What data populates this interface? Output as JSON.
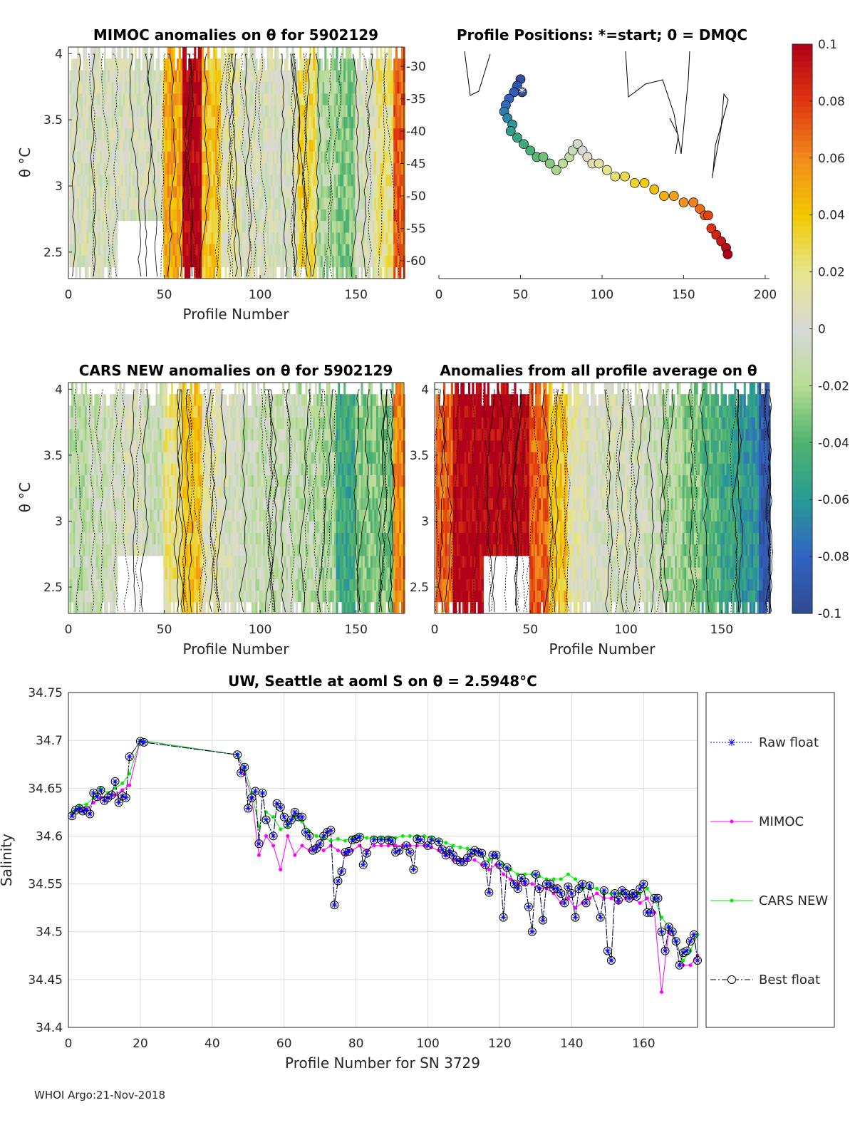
{
  "footer": "WHOI Argo:21-Nov-2018",
  "colorbar": {
    "ticks": [
      "0.1",
      "0.08",
      "0.06",
      "0.04",
      "0.02",
      "0",
      "-0.02",
      "-0.04",
      "-0.06",
      "-0.08",
      "-0.1"
    ],
    "range": [
      -0.1,
      0.1
    ],
    "stops": [
      "#2f4a8f",
      "#3163c4",
      "#2a9a95",
      "#4fb36e",
      "#b8dc94",
      "#d9d9d9",
      "#e6e68a",
      "#f2c800",
      "#f28a1e",
      "#e0350f",
      "#b0001a"
    ]
  },
  "chart_data": [
    {
      "type": "heatmap",
      "title": "MIMOC anomalies on θ  for 5902129",
      "xlabel": "Profile Number",
      "ylabel": "θ °C",
      "xlim": [
        0,
        175
      ],
      "ylim": [
        2.3,
        4.05
      ],
      "xticks": [
        "0",
        "50",
        "100",
        "150"
      ],
      "yticks": [
        "4",
        "3.5",
        "3",
        "2.5"
      ],
      "right_yticks": [
        "-30",
        "-35",
        "-40",
        "-45",
        "-50",
        "-55",
        "-60"
      ],
      "bin_width_profiles": 10,
      "column_mean_anomaly": [
        0,
        0,
        0,
        0,
        0,
        0.05,
        0.1,
        0.04,
        0.01,
        0,
        0,
        0,
        0.03,
        -0.02,
        -0.03,
        0,
        0.02,
        0.07
      ]
    },
    {
      "type": "scatter",
      "title": "Profile Positions: *=start; 0 = DMQC",
      "xlim": [
        0,
        200
      ],
      "ylim": [
        -62,
        -27
      ],
      "xticks": [
        "0",
        "50",
        "100",
        "150",
        "200"
      ],
      "lon": [
        51,
        50,
        48,
        46,
        43,
        41,
        40,
        42,
        45,
        44,
        48,
        52,
        56,
        60,
        64,
        68,
        72,
        76,
        80,
        82,
        85,
        88,
        91,
        94,
        98,
        103,
        108,
        114,
        120,
        126,
        132,
        138,
        144,
        150,
        156,
        160,
        163,
        165,
        167,
        170,
        173,
        176,
        177
      ],
      "lat": [
        -34,
        -32,
        -33,
        -34,
        -35,
        -36,
        -37,
        -38,
        -39,
        -40,
        -41,
        -42,
        -43,
        -44,
        -44,
        -45,
        -46,
        -45,
        -44,
        -43,
        -42,
        -43,
        -44,
        -45,
        -45,
        -46,
        -47,
        -47,
        -48,
        -48,
        -49,
        -50,
        -50,
        -51,
        -51,
        -52,
        -53,
        -53,
        -55,
        -56,
        -57,
        -58,
        -59
      ]
    },
    {
      "type": "heatmap",
      "title": "CARS NEW anomalies on θ for 5902129",
      "xlabel": "Profile Number",
      "ylabel": "θ °C",
      "xlim": [
        0,
        175
      ],
      "ylim": [
        2.3,
        4.05
      ],
      "xticks": [
        "0",
        "50",
        "100",
        "150"
      ],
      "yticks": [
        "4",
        "3.5",
        "3",
        "2.5"
      ],
      "bin_width_profiles": 10,
      "column_mean_anomaly": [
        -0.015,
        -0.01,
        -0.005,
        0,
        -0.01,
        0.02,
        0.04,
        0.01,
        0,
        -0.01,
        -0.01,
        -0.01,
        -0.015,
        -0.02,
        -0.05,
        -0.03,
        -0.03,
        0.06
      ]
    },
    {
      "type": "heatmap",
      "title": "Anomalies from all profile average on θ",
      "xlabel": "Profile Number",
      "xlim": [
        0,
        175
      ],
      "ylim": [
        2.3,
        4.05
      ],
      "xticks": [
        "0",
        "50",
        "100",
        "150"
      ],
      "yticks": [
        "4",
        "3.5",
        "3",
        "2.5"
      ],
      "bin_width_profiles": 10,
      "column_mean_anomaly": [
        0.07,
        0.1,
        0.1,
        0.1,
        0.1,
        0.07,
        0.04,
        0.01,
        0,
        0,
        0,
        -0.01,
        -0.02,
        -0.03,
        -0.04,
        -0.05,
        -0.06,
        -0.09
      ]
    },
    {
      "type": "line",
      "title": "UW, Seattle at aoml S on θ = 2.5948°C",
      "xlabel": "Profile Number for SN 3729",
      "ylabel": "Salinity",
      "xlim": [
        0,
        175
      ],
      "ylim": [
        34.4,
        34.75
      ],
      "xticks": [
        "0",
        "20",
        "40",
        "60",
        "80",
        "100",
        "120",
        "140",
        "160"
      ],
      "yticks": [
        "34.75",
        "34.7",
        "34.65",
        "34.6",
        "34.55",
        "34.5",
        "34.45",
        "34.4"
      ],
      "grid": true,
      "legend": [
        "Raw float",
        "MIMOC",
        "CARS NEW",
        "Best float"
      ],
      "legend_placement": "right-outside",
      "series": [
        {
          "name": "Best float",
          "x": [
            1,
            2,
            3,
            4,
            5,
            6,
            7,
            8,
            9,
            10,
            11,
            12,
            13,
            14,
            15,
            16,
            17,
            20,
            21,
            47,
            48,
            49,
            50,
            51,
            52,
            53,
            54,
            55,
            57,
            58,
            59,
            60,
            61,
            62,
            63,
            64,
            65,
            66,
            67,
            68,
            69,
            70,
            71,
            72,
            73,
            74,
            75,
            76,
            77,
            78,
            79,
            80,
            81,
            82,
            83,
            85,
            87,
            89,
            90,
            91,
            92,
            94,
            95,
            96,
            97,
            98,
            100,
            101,
            103,
            104,
            105,
            106,
            107,
            108,
            109,
            110,
            111,
            112,
            113,
            114,
            115,
            116,
            117,
            118,
            119,
            120,
            121,
            122,
            124,
            125,
            126,
            127,
            128,
            129,
            130,
            131,
            132,
            133,
            134,
            135,
            136,
            137,
            138,
            139,
            140,
            141,
            142,
            143,
            144,
            145,
            148,
            149,
            150,
            151,
            152,
            153,
            154,
            155,
            156,
            157,
            158,
            159,
            160,
            161,
            162,
            163,
            164,
            165,
            166,
            167,
            168,
            169,
            170,
            171,
            172,
            173,
            174,
            175
          ],
          "y": [
            34.621,
            34.627,
            34.629,
            34.626,
            34.627,
            34.623,
            34.645,
            34.641,
            34.648,
            34.637,
            34.64,
            34.643,
            34.657,
            34.635,
            34.642,
            34.64,
            34.683,
            34.699,
            34.698,
            34.685,
            34.666,
            34.672,
            34.629,
            34.64,
            34.647,
            34.592,
            34.645,
            34.617,
            34.6,
            34.634,
            34.63,
            34.62,
            34.612,
            34.617,
            34.625,
            34.62,
            34.62,
            34.604,
            34.6,
            34.585,
            34.587,
            34.592,
            34.6,
            34.604,
            34.606,
            34.528,
            34.553,
            34.563,
            34.583,
            34.584,
            34.596,
            34.597,
            34.599,
            34.57,
            34.582,
            34.596,
            34.596,
            34.596,
            34.595,
            34.583,
            34.585,
            34.59,
            34.583,
            34.565,
            34.597,
            34.596,
            34.59,
            34.596,
            34.594,
            34.586,
            34.58,
            34.585,
            34.58,
            34.575,
            34.573,
            34.573,
            34.577,
            34.582,
            34.585,
            34.583,
            34.582,
            34.57,
            34.541,
            34.58,
            34.58,
            34.57,
            34.515,
            34.567,
            34.55,
            34.545,
            34.556,
            34.552,
            34.526,
            34.5,
            34.56,
            34.545,
            34.512,
            34.55,
            34.55,
            34.545,
            34.545,
            34.54,
            34.53,
            34.547,
            34.54,
            34.515,
            34.545,
            34.55,
            34.53,
            34.548,
            34.515,
            34.543,
            34.48,
            34.47,
            34.54,
            34.533,
            34.543,
            34.54,
            34.535,
            34.54,
            34.537,
            34.545,
            34.55,
            34.52,
            34.52,
            34.535,
            34.535,
            34.5,
            34.48,
            34.505,
            34.5,
            34.49,
            34.465,
            34.478,
            34.48,
            34.49,
            34.497,
            34.47
          ]
        },
        {
          "name": "CARS NEW",
          "x": [
            1,
            3,
            5,
            7,
            9,
            11,
            13,
            15,
            17,
            20,
            47,
            49,
            51,
            53,
            55,
            57,
            59,
            61,
            63,
            65,
            67,
            69,
            71,
            73,
            75,
            77,
            79,
            81,
            83,
            85,
            87,
            89,
            91,
            93,
            95,
            97,
            99,
            101,
            103,
            105,
            107,
            109,
            111,
            113,
            115,
            117,
            119,
            121,
            123,
            125,
            127,
            129,
            131,
            133,
            135,
            137,
            139,
            141,
            143,
            145,
            147,
            149,
            151,
            153,
            155,
            157,
            159,
            161,
            163,
            165,
            167,
            169,
            171,
            173,
            175
          ],
          "y": [
            34.625,
            34.632,
            34.633,
            34.64,
            34.65,
            34.645,
            34.65,
            34.655,
            34.665,
            34.7,
            34.685,
            34.672,
            34.645,
            34.61,
            34.625,
            34.62,
            34.607,
            34.61,
            34.62,
            34.615,
            34.605,
            34.6,
            34.598,
            34.595,
            34.597,
            34.595,
            34.598,
            34.6,
            34.598,
            34.598,
            34.598,
            34.598,
            34.598,
            34.6,
            34.6,
            34.6,
            34.6,
            34.598,
            34.595,
            34.593,
            34.59,
            34.588,
            34.587,
            34.585,
            34.582,
            34.575,
            34.58,
            34.57,
            34.565,
            34.56,
            34.56,
            34.56,
            34.558,
            34.555,
            34.555,
            34.555,
            34.56,
            34.555,
            34.545,
            34.545,
            34.545,
            34.54,
            34.54,
            34.54,
            34.54,
            34.54,
            34.54,
            34.545,
            34.535,
            34.515,
            34.505,
            34.49,
            34.47,
            34.48,
            34.497
          ]
        },
        {
          "name": "MIMOC",
          "x": [
            1,
            3,
            5,
            7,
            9,
            11,
            13,
            15,
            17,
            20,
            47,
            49,
            51,
            53,
            55,
            57,
            59,
            61,
            63,
            65,
            67,
            69,
            71,
            73,
            75,
            77,
            79,
            81,
            83,
            85,
            87,
            89,
            91,
            93,
            95,
            97,
            99,
            101,
            103,
            105,
            107,
            109,
            111,
            113,
            115,
            117,
            119,
            121,
            123,
            125,
            127,
            129,
            131,
            133,
            135,
            137,
            139,
            141,
            143,
            145,
            147,
            149,
            151,
            153,
            155,
            157,
            159,
            161,
            163,
            165,
            167,
            169,
            171,
            173,
            175
          ],
          "y": [
            34.623,
            34.628,
            34.628,
            34.635,
            34.64,
            34.64,
            34.643,
            34.648,
            34.653,
            34.7,
            34.685,
            34.665,
            34.64,
            34.58,
            34.6,
            34.59,
            34.565,
            34.6,
            34.58,
            34.59,
            34.585,
            34.59,
            34.585,
            34.59,
            34.585,
            34.58,
            34.585,
            34.59,
            34.585,
            34.59,
            34.59,
            34.59,
            34.59,
            34.59,
            34.59,
            34.59,
            34.59,
            34.588,
            34.585,
            34.58,
            34.575,
            34.575,
            34.575,
            34.575,
            34.57,
            34.565,
            34.57,
            34.56,
            34.555,
            34.55,
            34.55,
            34.55,
            34.545,
            34.545,
            34.54,
            34.53,
            34.535,
            34.525,
            34.53,
            34.535,
            34.54,
            34.535,
            34.535,
            34.53,
            34.535,
            34.535,
            34.53,
            34.535,
            34.52,
            34.437,
            34.5,
            34.49,
            34.465,
            34.465,
            34.475
          ]
        }
      ]
    }
  ],
  "colors": {
    "raw": "#0000ff",
    "mimoc": "#ff00ff",
    "cars": "#00ee00",
    "best": "#000000"
  }
}
